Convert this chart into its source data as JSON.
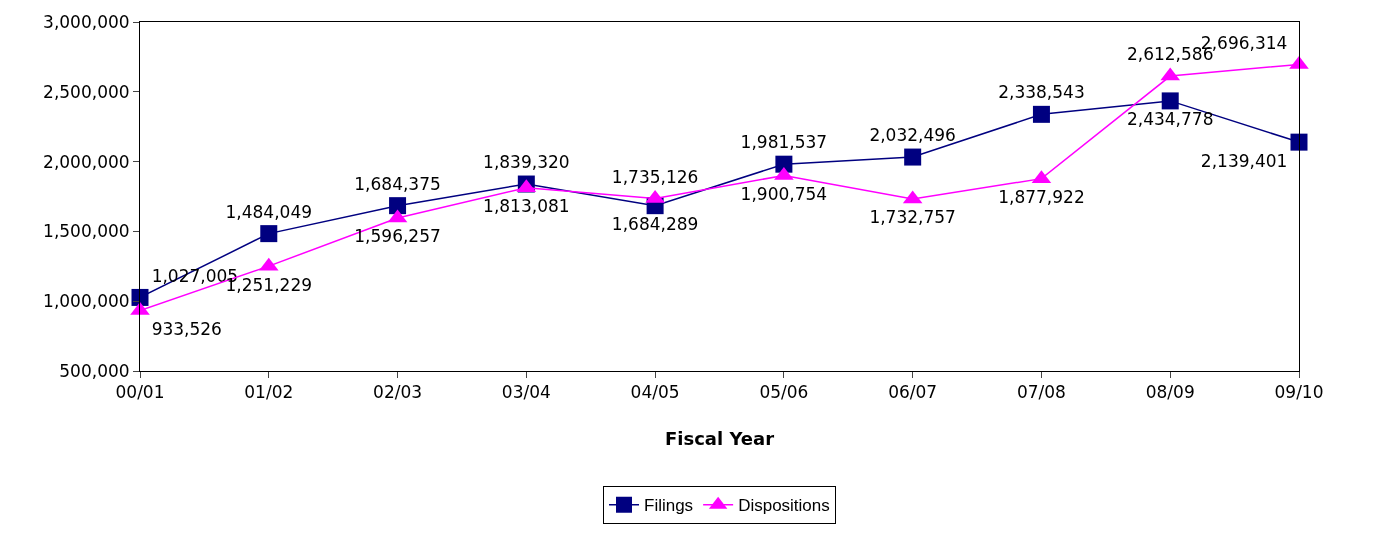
{
  "chart_data": {
    "type": "line",
    "xlabel": "Fiscal Year",
    "categories": [
      "00/01",
      "01/02",
      "02/03",
      "03/04",
      "04/05",
      "05/06",
      "06/07",
      "07/08",
      "08/09",
      "09/10"
    ],
    "series": [
      {
        "name": "Filings",
        "color": "#000080",
        "marker": "square",
        "values": [
          1027005,
          1484049,
          1684375,
          1839320,
          1684289,
          1981537,
          2032496,
          2338543,
          2434778,
          2139401
        ],
        "value_labels": [
          "1,027,005",
          "1,484,049",
          "1,684,375",
          "1,839,320",
          "1,684,289",
          "1,981,537",
          "2,032,496",
          "2,338,543",
          "2,434,778",
          "2,139,401"
        ]
      },
      {
        "name": "Dispositions",
        "color": "#ff00ff",
        "marker": "triangle",
        "values": [
          933526,
          1251229,
          1596257,
          1813081,
          1735126,
          1900754,
          1732757,
          1877922,
          2612586,
          2696314
        ],
        "value_labels": [
          "933,526",
          "1,251,229",
          "1,596,257",
          "1,813,081",
          "1,735,126",
          "1,900,754",
          "1,732,757",
          "1,877,922",
          "2,612,586",
          "2,696,314"
        ]
      }
    ],
    "ylim": [
      500000,
      3000000
    ],
    "yticks": [
      {
        "value": 500000,
        "label": "500,000"
      },
      {
        "value": 1000000,
        "label": "1,000,000"
      },
      {
        "value": 1500000,
        "label": "1,500,000"
      },
      {
        "value": 2000000,
        "label": "2,000,000"
      },
      {
        "value": 2500000,
        "label": "2,500,000"
      },
      {
        "value": 3000000,
        "label": "3,000,000"
      }
    ],
    "grid": false,
    "legend": "bottom",
    "line_style": "solid"
  }
}
